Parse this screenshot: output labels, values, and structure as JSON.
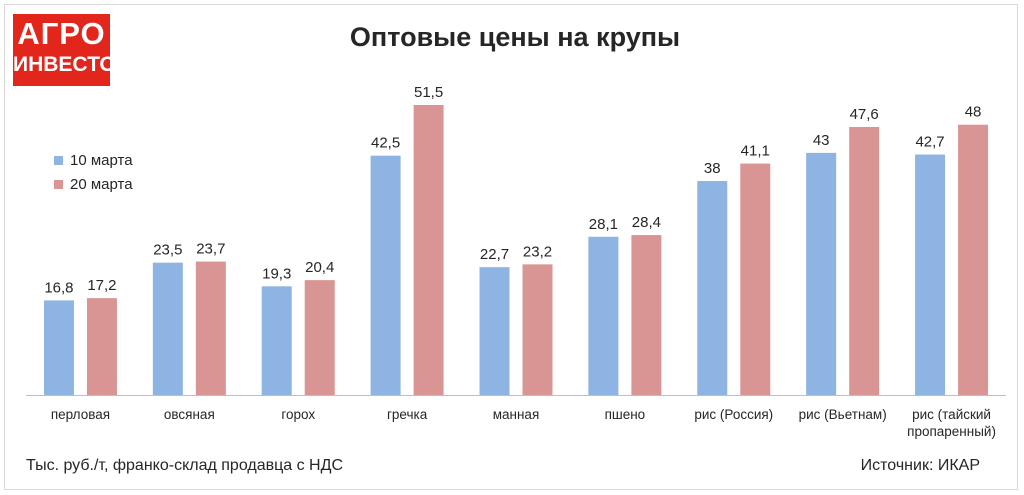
{
  "logo": {
    "line1": "АГРО",
    "line2": "ИНВЕСТОР"
  },
  "footer": {
    "units_note": "Тыс. руб./т, франко-склад продавца с НДС",
    "source": "Источник: ИКАР"
  },
  "colors": {
    "series1": "#8eb4e3",
    "series2": "#d99594",
    "axis": "#bfbfbf"
  },
  "chart_data": {
    "type": "bar",
    "title": "Оптовые цены на крупы",
    "categories": [
      [
        "перловая"
      ],
      [
        "овсяная"
      ],
      [
        "горох"
      ],
      [
        "гречка"
      ],
      [
        "манная"
      ],
      [
        "пшено"
      ],
      [
        "рис (Россия)"
      ],
      [
        "рис (Вьетнам)"
      ],
      [
        "рис (тайский",
        "пропаренный)"
      ]
    ],
    "series": [
      {
        "name": "10 марта",
        "values": [
          16.8,
          23.5,
          19.3,
          42.5,
          22.7,
          28.1,
          38,
          43,
          42.7
        ],
        "labels": [
          "16,8",
          "23,5",
          "19,3",
          "42,5",
          "22,7",
          "28,1",
          "38",
          "43",
          "42,7"
        ]
      },
      {
        "name": "20 марта",
        "values": [
          17.2,
          23.7,
          20.4,
          51.5,
          23.2,
          28.4,
          41.1,
          47.6,
          48
        ],
        "labels": [
          "17,2",
          "23,7",
          "20,4",
          "51,5",
          "23,2",
          "28,4",
          "41,1",
          "47,6",
          "48"
        ]
      }
    ],
    "ylim": [
      0,
      51.5
    ],
    "xlabel": "",
    "ylabel": "",
    "legend_position": "left",
    "grid": false,
    "data_labels": true
  }
}
